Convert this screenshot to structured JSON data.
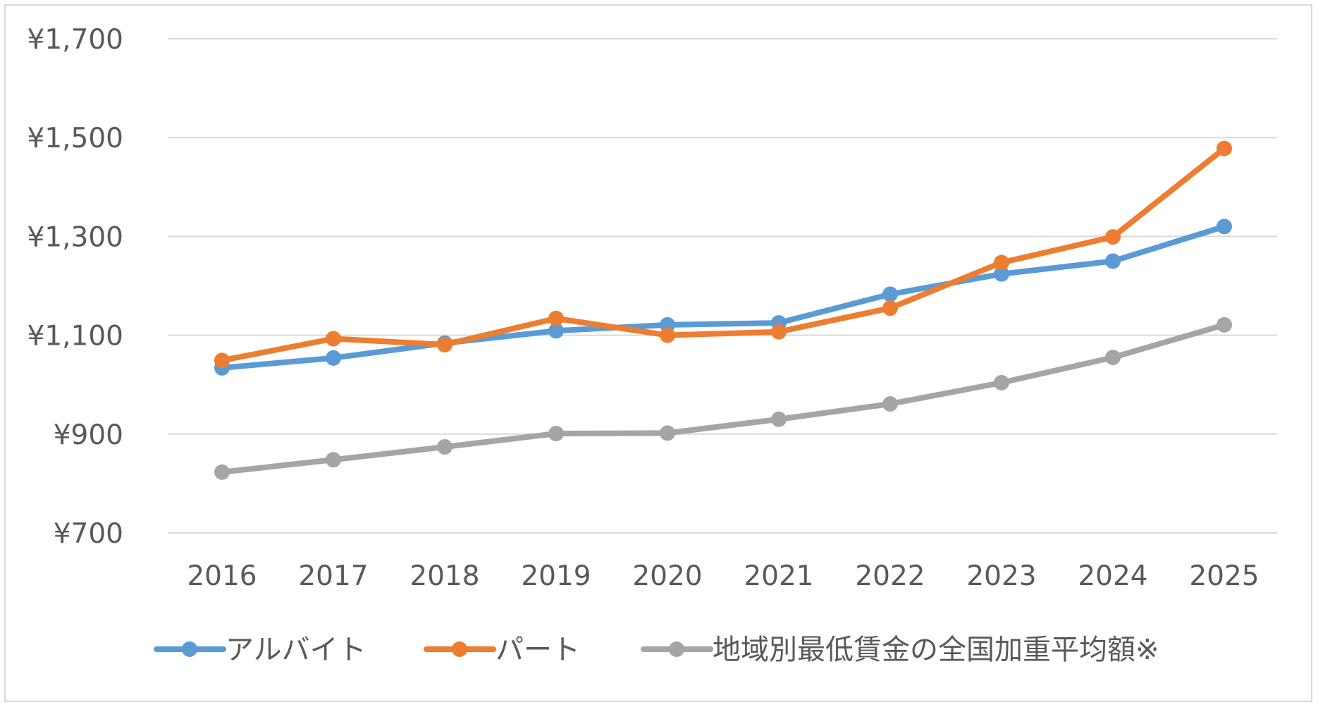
{
  "chart_data": {
    "type": "line",
    "title": "",
    "xlabel": "",
    "ylabel": "",
    "categories": [
      "2016",
      "2017",
      "2018",
      "2019",
      "2020",
      "2021",
      "2022",
      "2023",
      "2024",
      "2025"
    ],
    "ylim": [
      700,
      1700
    ],
    "yticks": [
      700,
      900,
      1100,
      1300,
      1500,
      1700
    ],
    "ytick_labels": [
      "¥700",
      "¥900",
      "¥1,100",
      "¥1,300",
      "¥1,500",
      "¥1,700"
    ],
    "grid": true,
    "legend_position": "bottom",
    "series": [
      {
        "name": "アルバイト",
        "color": "#5b9bd5",
        "values": [
          1034,
          1054,
          1084,
          1109,
          1121,
          1125,
          1183,
          1224,
          1250,
          1320
        ]
      },
      {
        "name": "パート",
        "color": "#ed7d31",
        "values": [
          1049,
          1093,
          1081,
          1134,
          1100,
          1107,
          1155,
          1247,
          1299,
          1478
        ]
      },
      {
        "name": "地域別最低賃金の全国加重平均額※",
        "color": "#a5a5a5",
        "values": [
          823,
          848,
          874,
          901,
          902,
          930,
          961,
          1004,
          1055,
          1121
        ]
      }
    ]
  }
}
